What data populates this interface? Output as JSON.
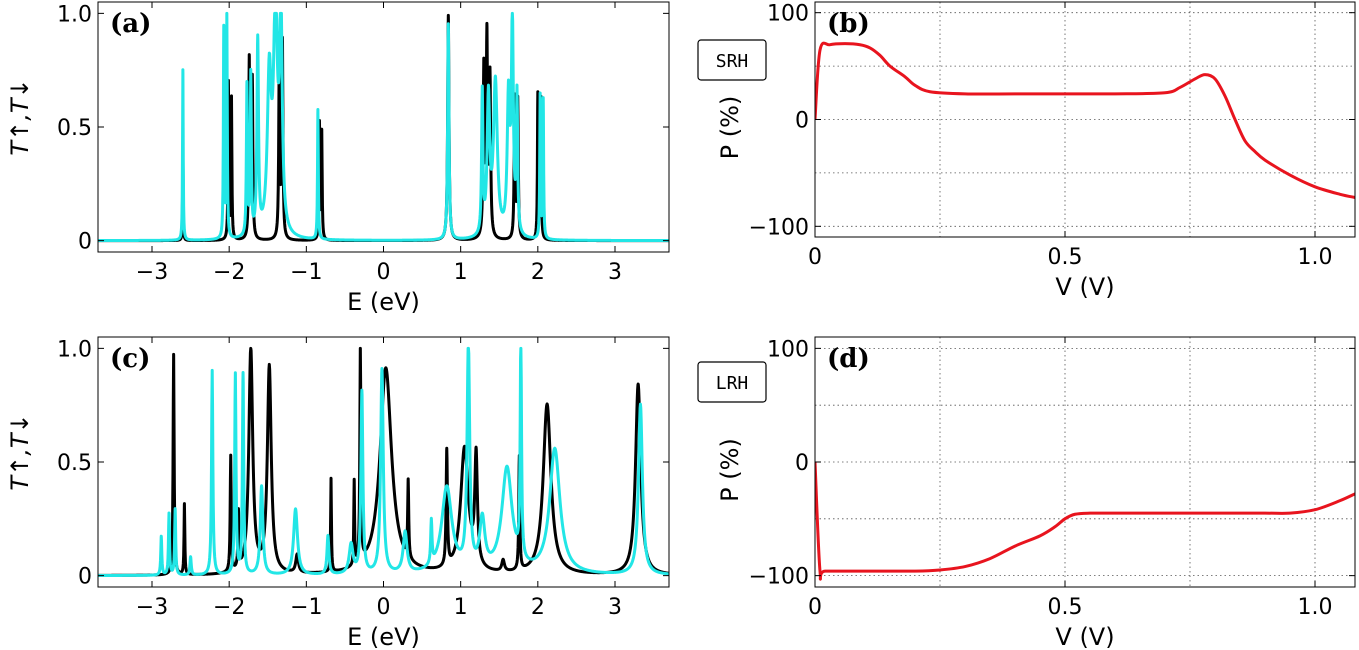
{
  "chart_data": [
    {
      "id": "a",
      "type": "line",
      "panel_label": "(a)",
      "xlabel": "E (eV)",
      "ylabel": "T↑,T↓",
      "xlim": [
        -3.7,
        3.7
      ],
      "ylim": [
        -0.05,
        1.05
      ],
      "xticks": [
        -3,
        -2,
        -1,
        0,
        1,
        2,
        3
      ],
      "xtick_labels": [
        "−3",
        "−2",
        "−1",
        "0",
        "1",
        "2",
        "3"
      ],
      "yticks": [
        0,
        0.5,
        1.0
      ],
      "ytick_labels": [
        "0",
        "0.5",
        "1.0"
      ],
      "grid": false,
      "series": [
        {
          "color": "#000000",
          "peaks": [
            [
              -2.6,
              0.39,
              0.004
            ],
            [
              -2.01,
              0.69,
              0.006
            ],
            [
              -1.97,
              0.62,
              0.006
            ],
            [
              -1.74,
              0.79,
              0.008
            ],
            [
              -1.7,
              0.7,
              0.008
            ],
            [
              -1.35,
              0.88,
              0.008
            ],
            [
              -1.31,
              0.86,
              0.008
            ],
            [
              -0.83,
              0.51,
              0.006
            ],
            [
              -0.8,
              0.47,
              0.006
            ],
            [
              0.84,
              0.99,
              0.01
            ],
            [
              1.3,
              0.74,
              0.01
            ],
            [
              1.34,
              0.87,
              0.01
            ],
            [
              1.38,
              0.7,
              0.01
            ],
            [
              1.7,
              0.62,
              0.008
            ],
            [
              1.74,
              0.61,
              0.008
            ],
            [
              2.0,
              0.64,
              0.006
            ],
            [
              2.04,
              0.62,
              0.006
            ]
          ]
        },
        {
          "color": "#22e6e6",
          "peaks": [
            [
              -2.6,
              0.75,
              0.005
            ],
            [
              -2.07,
              0.92,
              0.006
            ],
            [
              -2.03,
              0.99,
              0.006
            ],
            [
              -1.77,
              0.66,
              0.008
            ],
            [
              -1.72,
              0.7,
              0.008
            ],
            [
              -1.63,
              0.85,
              0.012
            ],
            [
              -1.48,
              0.68,
              0.03
            ],
            [
              -1.4,
              0.98,
              0.03
            ],
            [
              -1.33,
              0.97,
              0.02
            ],
            [
              -0.85,
              0.57,
              0.006
            ],
            [
              0.84,
              0.95,
              0.01
            ],
            [
              1.28,
              0.62,
              0.01
            ],
            [
              1.36,
              0.6,
              0.02
            ],
            [
              1.45,
              0.68,
              0.03
            ],
            [
              1.62,
              0.6,
              0.02
            ],
            [
              1.67,
              0.93,
              0.015
            ],
            [
              1.73,
              0.6,
              0.01
            ],
            [
              2.03,
              0.63,
              0.006
            ],
            [
              2.07,
              0.61,
              0.006
            ]
          ]
        }
      ]
    },
    {
      "id": "b",
      "type": "line",
      "panel_label": "(b)",
      "box_label": "SRH",
      "xlabel": "V (V)",
      "ylabel": "P (%)",
      "xlim": [
        0,
        1.08
      ],
      "ylim": [
        -110,
        110
      ],
      "xticks": [
        0,
        0.5,
        1.0
      ],
      "xtick_labels": [
        "0",
        "0.5",
        "1.0"
      ],
      "yticks": [
        -100,
        0,
        100
      ],
      "ytick_labels": [
        "−100",
        "0",
        "100"
      ],
      "grid": true,
      "series": [
        {
          "color": "#e8141e",
          "x": [
            0,
            0.01,
            0.03,
            0.06,
            0.09,
            0.11,
            0.13,
            0.15,
            0.18,
            0.2,
            0.23,
            0.3,
            0.4,
            0.5,
            0.6,
            0.7,
            0.73,
            0.76,
            0.78,
            0.8,
            0.82,
            0.84,
            0.86,
            0.88,
            0.9,
            0.95,
            1.0,
            1.05,
            1.08
          ],
          "y": [
            0,
            65,
            70,
            71,
            70,
            67,
            60,
            50,
            40,
            32,
            26,
            24,
            24,
            24,
            24,
            25,
            30,
            38,
            42,
            38,
            22,
            0,
            -20,
            -30,
            -38,
            -52,
            -63,
            -70,
            -73
          ]
        }
      ]
    },
    {
      "id": "c",
      "type": "line",
      "panel_label": "(c)",
      "xlabel": "E (eV)",
      "ylabel": "T↑,T↓",
      "xlim": [
        -3.7,
        3.7
      ],
      "ylim": [
        -0.05,
        1.05
      ],
      "xticks": [
        -3,
        -2,
        -1,
        0,
        1,
        2,
        3
      ],
      "xtick_labels": [
        "−3",
        "−2",
        "−1",
        "0",
        "1",
        "2",
        "3"
      ],
      "yticks": [
        0,
        0.5,
        1.0
      ],
      "ytick_labels": [
        "0",
        "0.5",
        "1.0"
      ],
      "grid": false,
      "series": [
        {
          "color": "#000000",
          "peaks": [
            [
              -2.72,
              0.97,
              0.008
            ],
            [
              -2.58,
              0.31,
              0.006
            ],
            [
              -1.98,
              0.51,
              0.008
            ],
            [
              -1.88,
              0.25,
              0.008
            ],
            [
              -1.72,
              0.99,
              0.03
            ],
            [
              -1.48,
              0.91,
              0.03
            ],
            [
              -1.12,
              0.08,
              0.02
            ],
            [
              -0.68,
              0.41,
              0.006
            ],
            [
              -0.38,
              0.37,
              0.006
            ],
            [
              -0.3,
              0.95,
              0.008
            ],
            [
              0.03,
              0.91,
              0.09
            ],
            [
              0.32,
              0.34,
              0.008
            ],
            [
              0.82,
              0.51,
              0.01
            ],
            [
              1.05,
              0.55,
              0.06
            ],
            [
              1.2,
              0.48,
              0.02
            ],
            [
              1.55,
              0.05,
              0.02
            ],
            [
              1.76,
              0.5,
              0.008
            ],
            [
              2.12,
              0.75,
              0.06
            ],
            [
              3.3,
              0.84,
              0.04
            ]
          ]
        },
        {
          "color": "#22e6e6",
          "peaks": [
            [
              -2.88,
              0.17,
              0.008
            ],
            [
              -2.78,
              0.27,
              0.008
            ],
            [
              -2.7,
              0.29,
              0.008
            ],
            [
              -2.5,
              0.08,
              0.01
            ],
            [
              -2.22,
              0.9,
              0.01
            ],
            [
              -1.92,
              0.88,
              0.01
            ],
            [
              -1.82,
              0.88,
              0.01
            ],
            [
              -1.58,
              0.39,
              0.02
            ],
            [
              -1.14,
              0.29,
              0.03
            ],
            [
              -0.72,
              0.17,
              0.015
            ],
            [
              -0.42,
              0.13,
              0.03
            ],
            [
              -0.28,
              0.8,
              0.015
            ],
            [
              -0.02,
              0.9,
              0.02
            ],
            [
              0.28,
              0.18,
              0.03
            ],
            [
              0.62,
              0.19,
              0.01
            ],
            [
              0.82,
              0.38,
              0.08
            ],
            [
              1.1,
              0.99,
              0.02
            ],
            [
              1.28,
              0.22,
              0.04
            ],
            [
              1.6,
              0.46,
              0.08
            ],
            [
              1.78,
              0.99,
              0.01
            ],
            [
              2.22,
              0.55,
              0.08
            ],
            [
              3.33,
              0.75,
              0.03
            ]
          ]
        }
      ]
    },
    {
      "id": "d",
      "type": "line",
      "panel_label": "(d)",
      "box_label": "LRH",
      "xlabel": "V (V)",
      "ylabel": "P (%)",
      "xlim": [
        0,
        1.08
      ],
      "ylim": [
        -110,
        110
      ],
      "xticks": [
        0,
        0.5,
        1.0
      ],
      "xtick_labels": [
        "0",
        "0.5",
        "1.0"
      ],
      "yticks": [
        -100,
        0,
        100
      ],
      "ytick_labels": [
        "−100",
        "0",
        "100"
      ],
      "grid": true,
      "series": [
        {
          "color": "#e8141e",
          "x": [
            0,
            0.01,
            0.02,
            0.1,
            0.2,
            0.25,
            0.3,
            0.35,
            0.4,
            0.45,
            0.48,
            0.5,
            0.52,
            0.55,
            0.6,
            0.7,
            0.8,
            0.9,
            0.95,
            1.0,
            1.05,
            1.08
          ],
          "y": [
            0,
            -96,
            -96,
            -96,
            -96,
            -95,
            -92,
            -85,
            -74,
            -65,
            -57,
            -50,
            -46,
            -45,
            -45,
            -45,
            -45,
            -45,
            -45,
            -42,
            -34,
            -28
          ]
        }
      ]
    }
  ]
}
